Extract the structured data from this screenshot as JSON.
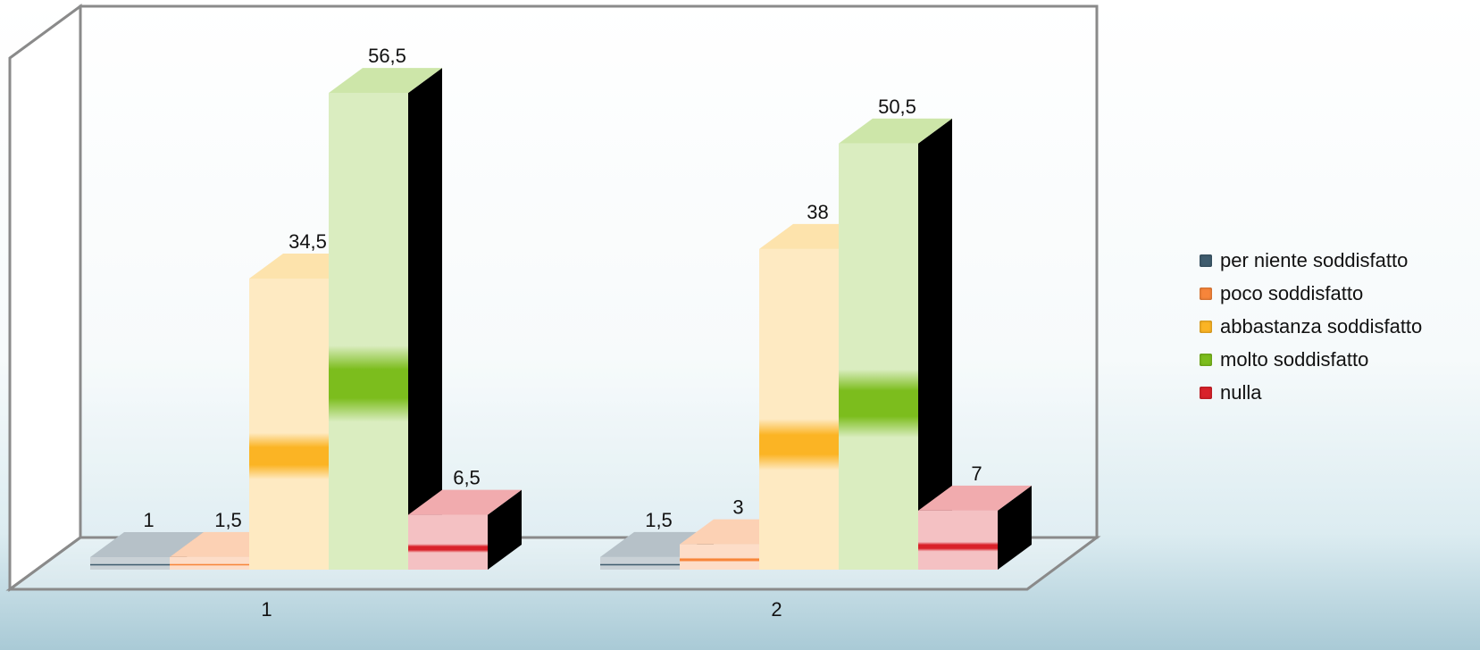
{
  "chart_data": {
    "type": "bar",
    "categories": [
      "1",
      "2"
    ],
    "series": [
      {
        "name": "per niente soddisfatto",
        "values": [
          1,
          1.5
        ],
        "labels": [
          "1",
          "1,5"
        ],
        "color": "#3f5c6e"
      },
      {
        "name": "poco soddisfatto",
        "values": [
          1.5,
          3
        ],
        "labels": [
          "1,5",
          "3"
        ],
        "color": "#f7853a"
      },
      {
        "name": "abbastanza soddisfatto",
        "values": [
          34.5,
          38
        ],
        "labels": [
          "34,5",
          "38"
        ],
        "color": "#fbb424"
      },
      {
        "name": "molto soddisfatto",
        "values": [
          56.5,
          50.5
        ],
        "labels": [
          "56,5",
          "50,5"
        ],
        "color": "#7cbd1d"
      },
      {
        "name": "nulla",
        "values": [
          6.5,
          7
        ],
        "labels": [
          "6,5",
          "7"
        ],
        "color": "#d9222a"
      }
    ],
    "legend_position": "right",
    "grid": false,
    "style": "3d-columns",
    "ylim": [
      0,
      60
    ]
  }
}
